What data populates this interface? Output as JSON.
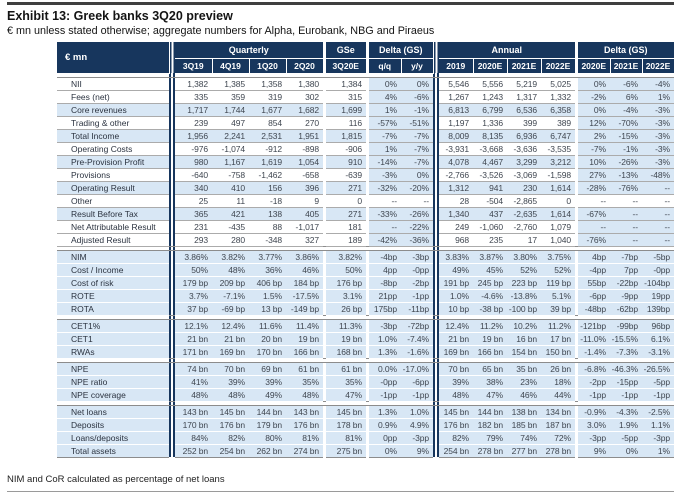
{
  "exhibit": {
    "title": "Exhibit 13: Greek banks 3Q20 preview",
    "subtitle": "€ mn unless stated otherwise; aggregate numbers for Alpha, Eurobank, NBG and Piraeus",
    "footnote": "NIM and CoR calculated as percentage of net loans"
  },
  "colors": {
    "header_bg": "#17365D",
    "stripe_blue": "#D8E7F5",
    "hairline_gray": "#ABABAB",
    "section_line_gray": "#8C8C8C",
    "number_text": "#3F4650"
  },
  "table": {
    "corner_label": "€ mn",
    "groups": [
      {
        "label": "Quarterly",
        "span": 4
      },
      {
        "label": "GSe",
        "span": 1
      },
      {
        "label": "Delta (GS)",
        "span": 2
      },
      {
        "label": "Annual",
        "span": 4
      },
      {
        "label": "Delta (GS)",
        "span": 3
      }
    ],
    "columns": [
      "3Q19",
      "4Q19",
      "1Q20",
      "2Q20",
      "3Q20E",
      "q/q",
      "y/y",
      "2019",
      "2020E",
      "2021E",
      "2022E",
      "2020E",
      "2021E",
      "2022E"
    ],
    "sections": [
      {
        "rows": [
          {
            "label": "NII",
            "values": [
              "1,382",
              "1,385",
              "1,358",
              "1,380",
              "1,384",
              "0%",
              "0%",
              "5,546",
              "5,556",
              "5,219",
              "5,025",
              "0%",
              "-6%",
              "-4%"
            ]
          },
          {
            "label": "Fees (net)",
            "values": [
              "335",
              "359",
              "319",
              "302",
              "315",
              "4%",
              "-6%",
              "1,267",
              "1,243",
              "1,317",
              "1,332",
              "-2%",
              "6%",
              "1%"
            ]
          },
          {
            "label": "Core revenues",
            "emphasis": true,
            "values": [
              "1,717",
              "1,744",
              "1,677",
              "1,682",
              "1,699",
              "1%",
              "-1%",
              "6,813",
              "6,799",
              "6,536",
              "6,358",
              "0%",
              "-4%",
              "-3%"
            ]
          },
          {
            "label": "Trading & other",
            "values": [
              "239",
              "497",
              "854",
              "270",
              "116",
              "-57%",
              "-51%",
              "1,197",
              "1,336",
              "399",
              "389",
              "12%",
              "-70%",
              "-3%"
            ]
          },
          {
            "label": "Total Income",
            "emphasis": true,
            "values": [
              "1,956",
              "2,241",
              "2,531",
              "1,951",
              "1,815",
              "-7%",
              "-7%",
              "8,009",
              "8,135",
              "6,936",
              "6,747",
              "2%",
              "-15%",
              "-3%"
            ]
          },
          {
            "label": "Operating Costs",
            "values": [
              "-976",
              "-1,074",
              "-912",
              "-898",
              "-906",
              "1%",
              "-7%",
              "-3,931",
              "-3,668",
              "-3,636",
              "-3,535",
              "-7%",
              "-1%",
              "-3%"
            ]
          },
          {
            "label": "Pre-Provision Profit",
            "emphasis": true,
            "values": [
              "980",
              "1,167",
              "1,619",
              "1,054",
              "910",
              "-14%",
              "-7%",
              "4,078",
              "4,467",
              "3,299",
              "3,212",
              "10%",
              "-26%",
              "-3%"
            ]
          },
          {
            "label": "Provisions",
            "values": [
              "-640",
              "-758",
              "-1,462",
              "-658",
              "-639",
              "-3%",
              "0%",
              "-2,766",
              "-3,526",
              "-3,069",
              "-1,598",
              "27%",
              "-13%",
              "-48%"
            ]
          },
          {
            "label": "Operating Result",
            "emphasis": true,
            "values": [
              "340",
              "410",
              "156",
              "396",
              "271",
              "-32%",
              "-20%",
              "1,312",
              "941",
              "230",
              "1,614",
              "-28%",
              "-76%",
              "--"
            ]
          },
          {
            "label": "Other",
            "muted": true,
            "values": [
              "25",
              "11",
              "-18",
              "9",
              "0",
              "--",
              "--",
              "28",
              "-504",
              "-2,865",
              "0",
              "--",
              "--",
              "--"
            ]
          },
          {
            "label": "Result Before Tax",
            "emphasis": true,
            "values": [
              "365",
              "421",
              "138",
              "405",
              "271",
              "-33%",
              "-26%",
              "1,340",
              "437",
              "-2,635",
              "1,614",
              "-67%",
              "--",
              "--"
            ]
          },
          {
            "label": "Net Attributable Result",
            "values": [
              "231",
              "-435",
              "88",
              "-1,017",
              "181",
              "--",
              "-22%",
              "249",
              "-1,060",
              "-2,760",
              "1,079",
              "--",
              "--",
              "--"
            ]
          },
          {
            "label": "Adjusted Result",
            "values": [
              "293",
              "280",
              "-348",
              "327",
              "189",
              "-42%",
              "-36%",
              "968",
              "235",
              "17",
              "1,040",
              "-76%",
              "--",
              "--"
            ]
          }
        ]
      },
      {
        "rows": [
          {
            "label": "NIM",
            "values": [
              "3.86%",
              "3.82%",
              "3.77%",
              "3.86%",
              "3.82%",
              "-4bp",
              "-3bp",
              "3.83%",
              "3.87%",
              "3.80%",
              "3.75%",
              "4bp",
              "-7bp",
              "-5bp"
            ]
          },
          {
            "label": "Cost / Income",
            "values": [
              "50%",
              "48%",
              "36%",
              "46%",
              "50%",
              "4pp",
              "-0pp",
              "49%",
              "45%",
              "52%",
              "52%",
              "-4pp",
              "7pp",
              "-0pp"
            ]
          },
          {
            "label": "Cost of risk",
            "values": [
              "179 bp",
              "209 bp",
              "406 bp",
              "184 bp",
              "176 bp",
              "-8bp",
              "-2bp",
              "191 bp",
              "245 bp",
              "223 bp",
              "119 bp",
              "55bp",
              "-22bp",
              "-104bp"
            ]
          },
          {
            "label": "ROTE",
            "values": [
              "3.7%",
              "-7.1%",
              "1.5%",
              "-17.5%",
              "3.1%",
              "21pp",
              "-1pp",
              "1.0%",
              "-4.6%",
              "-13.8%",
              "5.1%",
              "-6pp",
              "-9pp",
              "19pp"
            ]
          },
          {
            "label": "ROTA",
            "values": [
              "37 bp",
              "-69 bp",
              "13 bp",
              "-149 bp",
              "26 bp",
              "175bp",
              "-11bp",
              "10 bp",
              "-38 bp",
              "-100 bp",
              "39 bp",
              "-48bp",
              "-62bp",
              "139bp"
            ]
          }
        ]
      },
      {
        "rows": [
          {
            "label": "CET1%",
            "values": [
              "12.1%",
              "12.4%",
              "11.6%",
              "11.4%",
              "11.3%",
              "-3bp",
              "-72bp",
              "12.4%",
              "11.2%",
              "10.2%",
              "11.2%",
              "-121bp",
              "-99bp",
              "96bp"
            ]
          },
          {
            "label": "CET1",
            "values": [
              "21 bn",
              "21 bn",
              "20 bn",
              "19 bn",
              "19 bn",
              "1.0%",
              "-7.4%",
              "21 bn",
              "19 bn",
              "16 bn",
              "17 bn",
              "-11.0%",
              "-15.5%",
              "6.1%"
            ]
          },
          {
            "label": "RWAs",
            "values": [
              "171 bn",
              "169 bn",
              "170 bn",
              "166 bn",
              "168 bn",
              "1.3%",
              "-1.6%",
              "169 bn",
              "166 bn",
              "154 bn",
              "150 bn",
              "-1.4%",
              "-7.3%",
              "-3.1%"
            ]
          }
        ]
      },
      {
        "rows": [
          {
            "label": "NPE",
            "values": [
              "74 bn",
              "70 bn",
              "69 bn",
              "61 bn",
              "61 bn",
              "0.0%",
              "-17.0%",
              "70 bn",
              "65 bn",
              "35 bn",
              "26 bn",
              "-6.8%",
              "-46.3%",
              "-26.5%"
            ]
          },
          {
            "label": "NPE ratio",
            "values": [
              "41%",
              "39%",
              "39%",
              "35%",
              "35%",
              "-0pp",
              "-6pp",
              "39%",
              "38%",
              "23%",
              "18%",
              "-2pp",
              "-15pp",
              "-5pp"
            ]
          },
          {
            "label": "NPE coverage",
            "values": [
              "48%",
              "48%",
              "49%",
              "48%",
              "47%",
              "-1pp",
              "-1pp",
              "48%",
              "47%",
              "46%",
              "44%",
              "-1pp",
              "-1pp",
              "-1pp"
            ]
          }
        ]
      },
      {
        "rows": [
          {
            "label": "Net loans",
            "values": [
              "143 bn",
              "145 bn",
              "144 bn",
              "143 bn",
              "145 bn",
              "1.3%",
              "1.0%",
              "145 bn",
              "144 bn",
              "138 bn",
              "134 bn",
              "-0.9%",
              "-4.3%",
              "-2.5%"
            ]
          },
          {
            "label": "Deposits",
            "values": [
              "170 bn",
              "176 bn",
              "179 bn",
              "176 bn",
              "178 bn",
              "0.9%",
              "4.9%",
              "176 bn",
              "182 bn",
              "185 bn",
              "187 bn",
              "3.0%",
              "1.9%",
              "1.1%"
            ]
          },
          {
            "label": "Loans/deposits",
            "values": [
              "84%",
              "82%",
              "80%",
              "81%",
              "81%",
              "0pp",
              "-3pp",
              "82%",
              "79%",
              "74%",
              "72%",
              "-3pp",
              "-5pp",
              "-3pp"
            ]
          },
          {
            "label": "Total assets",
            "values": [
              "252 bn",
              "254 bn",
              "262 bn",
              "274 bn",
              "275 bn",
              "0%",
              "9%",
              "254 bn",
              "278 bn",
              "277 bn",
              "278 bn",
              "9%",
              "0%",
              "1%"
            ]
          }
        ]
      }
    ]
  }
}
